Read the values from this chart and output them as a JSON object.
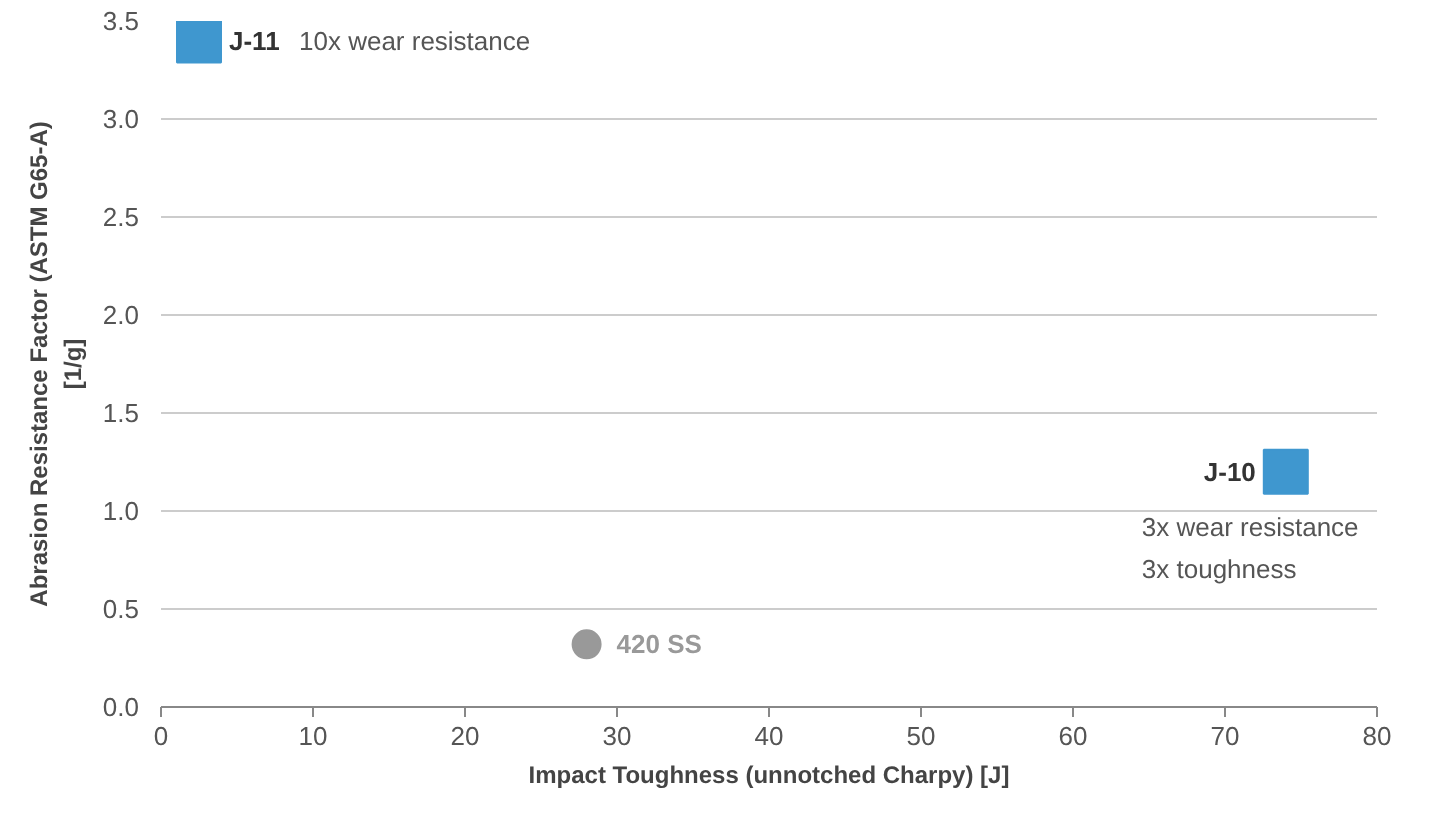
{
  "chart_data": {
    "type": "scatter",
    "xlabel": "Impact Toughness (unnotched Charpy) [J]",
    "ylabel": "Abrasion Resistance Factor (ASTM G65-A)\n[1/g]",
    "xlim": [
      0,
      80
    ],
    "ylim": [
      0,
      3.5
    ],
    "xticks": [
      0,
      10,
      20,
      30,
      40,
      50,
      60,
      70,
      80
    ],
    "yticks": [
      {
        "value": 0,
        "label": "0.0"
      },
      {
        "value": 0.5,
        "label": "0.5"
      },
      {
        "value": 1,
        "label": "1.0"
      },
      {
        "value": 1.5,
        "label": "1.5"
      },
      {
        "value": 2,
        "label": "2.0"
      },
      {
        "value": 2.5,
        "label": "2.5"
      },
      {
        "value": 3,
        "label": "3.0"
      },
      {
        "value": 3.5,
        "label": "3.5"
      }
    ],
    "grid": "y",
    "series": [
      {
        "name": "J-11",
        "color": "#3f97cf",
        "marker": "square",
        "x": [
          2.5
        ],
        "values": [
          3.4
        ]
      },
      {
        "name": "J-10",
        "color": "#3f97cf",
        "marker": "square",
        "x": [
          74
        ],
        "values": [
          1.2
        ]
      },
      {
        "name": "420 SS",
        "color": "#999999",
        "marker": "circle",
        "x": [
          28
        ],
        "values": [
          0.32
        ]
      }
    ],
    "annotations": [
      "10x wear resistance",
      "3x wear resistance\n3x toughness"
    ]
  }
}
